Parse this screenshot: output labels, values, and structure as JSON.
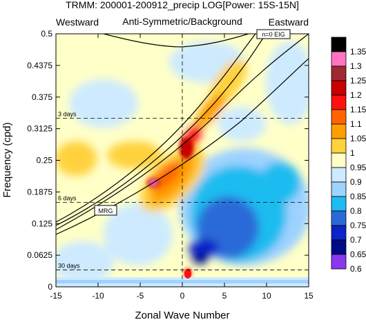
{
  "chart_data": {
    "type": "heatmap",
    "title": "TRMM: 200001-200912_precip LOG[Power: 15S-15N]",
    "subtitle": "Anti-Symmetric/Background",
    "left_label": "Westward",
    "right_label": "Eastward",
    "xlabel": "Zonal Wave Number",
    "ylabel": "Frequency (cpd)",
    "xlim": [
      -15,
      15
    ],
    "ylim": [
      0,
      0.5
    ],
    "x_ticks": [
      "-15",
      "-10",
      "-5",
      "0",
      "5",
      "10",
      "15"
    ],
    "y_ticks": [
      "0",
      "0.0625",
      "0.125",
      "0.1875",
      "0.25",
      "0.3125",
      "0.375",
      "0.4375",
      "0.5"
    ],
    "period_lines": [
      {
        "label": "3 days",
        "frequency": 0.3333
      },
      {
        "label": "6 days",
        "frequency": 0.1667
      },
      {
        "label": "30 days",
        "frequency": 0.0333
      }
    ],
    "curve_labels": [
      {
        "label": "n=0 EIG"
      },
      {
        "label": "MRG"
      }
    ],
    "colorbar": {
      "levels": [
        "1.35",
        "1.3",
        "1.25",
        "1.2",
        "1.15",
        "1.1",
        "1.05",
        "1",
        "0.95",
        "0.9",
        "0.85",
        "0.8",
        "0.75",
        "0.7",
        "0.65",
        "0.6"
      ],
      "colors": [
        "#000000",
        "#ff73c1",
        "#a02830",
        "#c80000",
        "#ff1010",
        "#ff6400",
        "#ff9e00",
        "#ffd23c",
        "#ffffc8",
        "#cdeaff",
        "#9ed2ff",
        "#1fbcf0",
        "#2a6ad8",
        "#0c23c8",
        "#000a87",
        "#8b37f0"
      ]
    }
  }
}
